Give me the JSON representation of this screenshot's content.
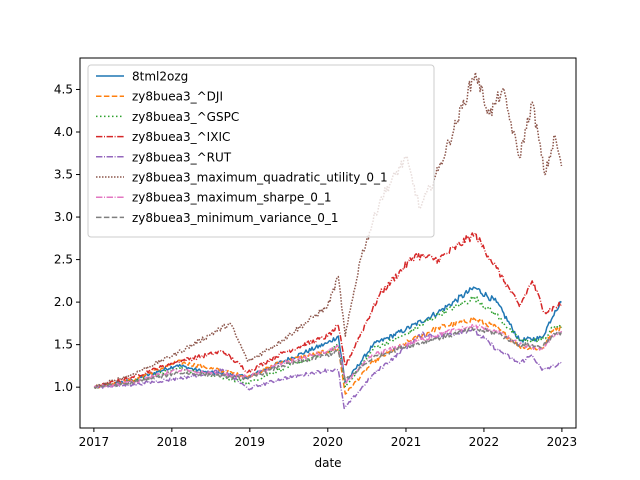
{
  "chart_data": {
    "type": "line",
    "title": "",
    "xlabel": "date",
    "ylabel": "",
    "x_ticks": [
      "2017",
      "2018",
      "2019",
      "2020",
      "2021",
      "2022",
      "2023"
    ],
    "y_ticks": [
      1.0,
      1.5,
      2.0,
      2.5,
      3.0,
      3.5,
      4.0,
      4.5
    ],
    "xlim": [
      "2016-10-28",
      "2023-03-08"
    ],
    "ylim": [
      0.52,
      4.87
    ],
    "grid": false,
    "legend_position": "upper-left",
    "series": [
      {
        "name": "8tml2ozg",
        "color": "#1f77b4",
        "dash": "solid",
        "x": [
          "2017-01-03",
          "2017-07-01",
          "2018-01-26",
          "2018-06-01",
          "2018-12-24",
          "2019-06-01",
          "2019-12-31",
          "2020-02-19",
          "2020-03-23",
          "2020-08-01",
          "2021-01-01",
          "2021-06-01",
          "2021-11-19",
          "2022-03-01",
          "2022-06-16",
          "2022-09-30",
          "2022-11-30",
          "2022-12-30"
        ],
        "y": [
          1.0,
          1.08,
          1.26,
          1.18,
          1.12,
          1.3,
          1.52,
          1.6,
          1.05,
          1.5,
          1.68,
          1.88,
          2.17,
          2.0,
          1.55,
          1.58,
          1.9,
          2.0
        ]
      },
      {
        "name": "zy8buea3_^DJI",
        "color": "#ff7f0e",
        "dash": "dashed",
        "x": [
          "2017-01-03",
          "2017-07-01",
          "2018-01-26",
          "2018-06-01",
          "2018-12-24",
          "2019-06-01",
          "2019-12-31",
          "2020-02-19",
          "2020-03-23",
          "2020-08-01",
          "2021-01-01",
          "2021-06-01",
          "2021-11-19",
          "2022-03-01",
          "2022-06-16",
          "2022-09-30",
          "2022-11-30",
          "2022-12-30"
        ],
        "y": [
          1.0,
          1.08,
          1.3,
          1.24,
          1.12,
          1.3,
          1.42,
          1.45,
          0.92,
          1.3,
          1.52,
          1.7,
          1.8,
          1.7,
          1.48,
          1.45,
          1.7,
          1.68
        ]
      },
      {
        "name": "zy8buea3_^GSPC",
        "color": "#2ca02c",
        "dash": "dotted",
        "x": [
          "2017-01-03",
          "2017-07-01",
          "2018-01-26",
          "2018-06-01",
          "2018-12-24",
          "2019-06-01",
          "2019-12-31",
          "2020-02-19",
          "2020-03-23",
          "2020-08-01",
          "2021-01-01",
          "2021-06-01",
          "2021-11-19",
          "2022-03-01",
          "2022-06-16",
          "2022-09-30",
          "2022-11-30",
          "2022-12-30"
        ],
        "y": [
          1.0,
          1.07,
          1.22,
          1.16,
          1.05,
          1.22,
          1.4,
          1.5,
          1.0,
          1.45,
          1.62,
          1.85,
          2.05,
          1.85,
          1.55,
          1.55,
          1.72,
          1.7
        ]
      },
      {
        "name": "zy8buea3_^IXIC",
        "color": "#d62728",
        "dash": "dashdot",
        "x": [
          "2017-01-03",
          "2017-07-01",
          "2018-01-26",
          "2018-08-29",
          "2018-12-24",
          "2019-06-01",
          "2019-12-31",
          "2020-02-19",
          "2020-03-23",
          "2020-09-02",
          "2021-02-12",
          "2021-06-01",
          "2021-11-19",
          "2022-03-01",
          "2022-06-16",
          "2022-08-15",
          "2022-10-13",
          "2022-12-30"
        ],
        "y": [
          1.0,
          1.12,
          1.3,
          1.42,
          1.18,
          1.4,
          1.6,
          1.72,
          1.25,
          2.1,
          2.55,
          2.5,
          2.8,
          2.4,
          1.95,
          2.25,
          1.88,
          1.98
        ]
      },
      {
        "name": "zy8buea3_^RUT",
        "color": "#9467bd",
        "dash": "dashdot",
        "x": [
          "2017-01-03",
          "2017-07-01",
          "2018-01-26",
          "2018-08-31",
          "2018-12-24",
          "2019-06-01",
          "2019-12-31",
          "2020-02-19",
          "2020-03-18",
          "2020-08-01",
          "2021-03-15",
          "2021-06-01",
          "2021-11-08",
          "2022-03-01",
          "2022-06-16",
          "2022-08-15",
          "2022-09-30",
          "2022-12-30"
        ],
        "y": [
          1.0,
          1.03,
          1.1,
          1.2,
          0.98,
          1.1,
          1.2,
          1.2,
          0.75,
          1.15,
          1.62,
          1.6,
          1.68,
          1.45,
          1.28,
          1.38,
          1.2,
          1.28
        ]
      },
      {
        "name": "zy8buea3_maximum_quadratic_utility_0_1",
        "color": "#8c564b",
        "dash": "densedot",
        "x": [
          "2017-01-03",
          "2017-07-01",
          "2018-01-26",
          "2018-10-01",
          "2018-12-24",
          "2019-06-01",
          "2019-12-31",
          "2020-02-19",
          "2020-03-23",
          "2020-06-01",
          "2020-09-02",
          "2021-01-01",
          "2021-03-08",
          "2021-06-01",
          "2021-11-22",
          "2022-01-27",
          "2022-03-29",
          "2022-06-16",
          "2022-08-15",
          "2022-10-13",
          "2022-11-30",
          "2022-12-30"
        ],
        "y": [
          1.0,
          1.15,
          1.4,
          1.75,
          1.3,
          1.55,
          1.95,
          2.3,
          1.6,
          2.5,
          3.2,
          3.7,
          3.1,
          3.55,
          4.7,
          4.2,
          4.5,
          3.7,
          4.35,
          3.5,
          3.95,
          3.6
        ]
      },
      {
        "name": "zy8buea3_maximum_sharpe_0_1",
        "color": "#e377c2",
        "dash": "dashdot",
        "x": [
          "2017-01-03",
          "2017-07-01",
          "2018-01-26",
          "2018-06-01",
          "2018-12-24",
          "2019-06-01",
          "2019-12-31",
          "2020-02-19",
          "2020-03-23",
          "2020-08-01",
          "2021-01-01",
          "2021-06-01",
          "2021-11-19",
          "2022-03-01",
          "2022-06-16",
          "2022-09-30",
          "2022-11-30",
          "2022-12-30"
        ],
        "y": [
          1.0,
          1.06,
          1.2,
          1.17,
          1.12,
          1.28,
          1.42,
          1.48,
          1.05,
          1.38,
          1.5,
          1.62,
          1.72,
          1.66,
          1.5,
          1.45,
          1.62,
          1.66
        ]
      },
      {
        "name": "zy8buea3_minimum_variance_0_1",
        "color": "#7f7f7f",
        "dash": "dashed",
        "x": [
          "2017-01-03",
          "2017-07-01",
          "2018-01-26",
          "2018-06-01",
          "2018-12-24",
          "2019-06-01",
          "2019-12-31",
          "2020-02-19",
          "2020-03-23",
          "2020-08-01",
          "2021-01-01",
          "2021-06-01",
          "2021-11-19",
          "2022-03-01",
          "2022-06-16",
          "2022-09-30",
          "2022-11-30",
          "2022-12-30"
        ],
        "y": [
          1.0,
          1.05,
          1.17,
          1.15,
          1.1,
          1.25,
          1.38,
          1.42,
          1.08,
          1.35,
          1.48,
          1.58,
          1.68,
          1.64,
          1.5,
          1.48,
          1.62,
          1.65
        ]
      }
    ]
  }
}
